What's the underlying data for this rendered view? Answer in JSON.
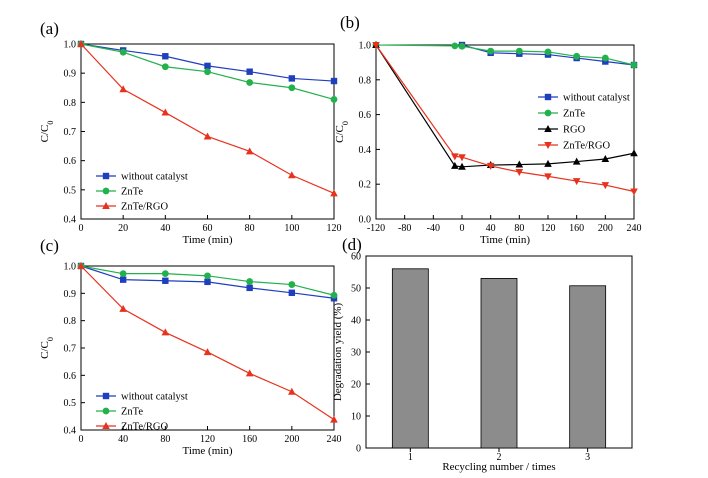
{
  "colors": {
    "without_catalyst": "#1f3fbf",
    "ZnTe": "#22b14c",
    "RGO": "#000000",
    "ZnTe_RGO": "#e8321e",
    "bar_fill": "#8c8c8c"
  },
  "chart_data": [
    {
      "panel": "(a)",
      "type": "line",
      "xlabel": "Time (min)",
      "ylabel": "C/C0",
      "xlim": [
        0,
        120
      ],
      "ylim": [
        0.4,
        1.0
      ],
      "xticks": [
        0,
        20,
        40,
        60,
        80,
        100,
        120
      ],
      "yticks": [
        0.4,
        0.5,
        0.6,
        0.7,
        0.8,
        0.9,
        1.0
      ],
      "legend_position": "bottom-left",
      "series": [
        {
          "name": "without catalyst",
          "color_key": "without_catalyst",
          "marker": "square",
          "x": [
            0,
            20,
            40,
            60,
            80,
            100,
            120
          ],
          "y": [
            1.0,
            0.978,
            0.958,
            0.925,
            0.905,
            0.882,
            0.873
          ]
        },
        {
          "name": "ZnTe",
          "color_key": "ZnTe",
          "marker": "circle",
          "x": [
            0,
            20,
            40,
            60,
            80,
            100,
            120
          ],
          "y": [
            1.0,
            0.972,
            0.922,
            0.905,
            0.868,
            0.85,
            0.81
          ]
        },
        {
          "name": "ZnTe/RGO",
          "color_key": "ZnTe_RGO",
          "marker": "triangle-up",
          "x": [
            0,
            20,
            40,
            60,
            80,
            100,
            120
          ],
          "y": [
            1.0,
            0.845,
            0.765,
            0.683,
            0.632,
            0.55,
            0.488
          ]
        }
      ]
    },
    {
      "panel": "(b)",
      "type": "line",
      "xlabel": "Time (min)",
      "ylabel": "C/C0",
      "xlim": [
        -120,
        240
      ],
      "ylim": [
        0.0,
        1.0
      ],
      "xticks": [
        -120,
        -80,
        -40,
        0,
        40,
        80,
        120,
        160,
        200,
        240
      ],
      "yticks": [
        0.0,
        0.2,
        0.4,
        0.6,
        0.8,
        1.0
      ],
      "legend_position": "middle-right",
      "series": [
        {
          "name": "without catalyst",
          "color_key": "without_catalyst",
          "marker": "square",
          "x": [
            0,
            40,
            80,
            120,
            160,
            200,
            240
          ],
          "y": [
            1.0,
            0.955,
            0.95,
            0.945,
            0.925,
            0.905,
            0.885
          ]
        },
        {
          "name": "ZnTe",
          "color_key": "ZnTe",
          "marker": "circle",
          "x": [
            -120,
            -10,
            0,
            40,
            80,
            120,
            160,
            200,
            240
          ],
          "y": [
            1.0,
            0.995,
            0.993,
            0.965,
            0.965,
            0.96,
            0.935,
            0.925,
            0.885
          ]
        },
        {
          "name": "RGO",
          "color_key": "RGO",
          "marker": "triangle-up",
          "x": [
            -120,
            -10,
            0,
            40,
            80,
            120,
            160,
            200,
            240
          ],
          "y": [
            1.0,
            0.305,
            0.3,
            0.31,
            0.313,
            0.317,
            0.33,
            0.345,
            0.378
          ]
        },
        {
          "name": "ZnTe/RGO",
          "color_key": "ZnTe_RGO",
          "marker": "triangle-down",
          "x": [
            -120,
            -10,
            0,
            40,
            80,
            120,
            160,
            200,
            240
          ],
          "y": [
            1.0,
            0.36,
            0.355,
            0.305,
            0.27,
            0.245,
            0.218,
            0.195,
            0.158
          ]
        }
      ]
    },
    {
      "panel": "(c)",
      "type": "line",
      "xlabel": "Time (min)",
      "ylabel": "C/C0",
      "xlim": [
        0,
        240
      ],
      "ylim": [
        0.4,
        1.0
      ],
      "xticks": [
        0,
        40,
        80,
        120,
        160,
        200,
        240
      ],
      "yticks": [
        0.4,
        0.5,
        0.6,
        0.7,
        0.8,
        0.9,
        1.0
      ],
      "legend_position": "bottom-left",
      "series": [
        {
          "name": "without catalyst",
          "color_key": "without_catalyst",
          "marker": "square",
          "x": [
            0,
            40,
            80,
            120,
            160,
            200,
            240
          ],
          "y": [
            1.0,
            0.95,
            0.946,
            0.942,
            0.92,
            0.902,
            0.882
          ]
        },
        {
          "name": "ZnTe",
          "color_key": "ZnTe",
          "marker": "circle",
          "x": [
            0,
            40,
            80,
            120,
            160,
            200,
            240
          ],
          "y": [
            1.0,
            0.972,
            0.972,
            0.964,
            0.943,
            0.932,
            0.893
          ]
        },
        {
          "name": "ZnTe/RGO",
          "color_key": "ZnTe_RGO",
          "marker": "triangle-up",
          "x": [
            0,
            40,
            80,
            120,
            160,
            200,
            240
          ],
          "y": [
            1.0,
            0.843,
            0.757,
            0.685,
            0.607,
            0.54,
            0.438
          ]
        }
      ]
    },
    {
      "panel": "(d)",
      "type": "bar",
      "xlabel": "Recycling number / times",
      "ylabel": "Degradation yield (%)",
      "categories": [
        "1",
        "2",
        "3"
      ],
      "values": [
        56,
        53,
        50.7
      ],
      "ylim": [
        0,
        60
      ],
      "yticks": [
        0,
        10,
        20,
        30,
        40,
        50,
        60
      ]
    }
  ]
}
